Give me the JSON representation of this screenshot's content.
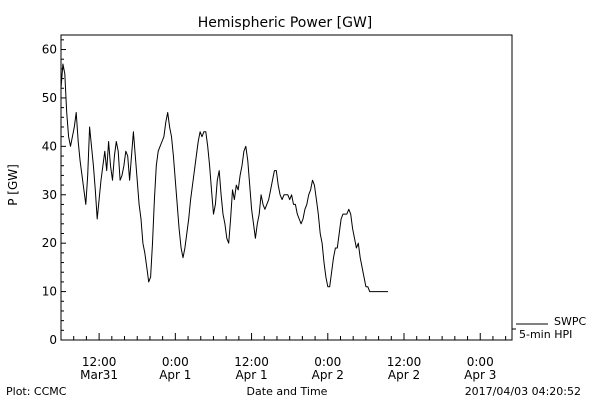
{
  "chart_data": {
    "type": "line",
    "title": "Hemispheric Power [GW]",
    "ylabel": "P [GW]",
    "xlabel": "Date and Time",
    "ylim": [
      0,
      63
    ],
    "yticks": [
      0,
      10,
      20,
      30,
      40,
      50,
      60
    ],
    "x_unit": "hours since 2017-03-31 06:00",
    "xlim": [
      0,
      71
    ],
    "xticks": [
      {
        "x": 6,
        "label": [
          "12:00",
          "Mar31"
        ]
      },
      {
        "x": 18,
        "label": [
          "0:00",
          "Apr 1"
        ]
      },
      {
        "x": 30,
        "label": [
          "12:00",
          "Apr 1"
        ]
      },
      {
        "x": 42,
        "label": [
          "0:00",
          "Apr 2"
        ]
      },
      {
        "x": 54,
        "label": [
          "12:00",
          "Apr 2"
        ]
      },
      {
        "x": 66,
        "label": [
          "0:00",
          "Apr 3"
        ]
      }
    ],
    "grid": false,
    "legend_position": "bottom-right outside",
    "series": [
      {
        "name": "SWPC",
        "points": [
          [
            0.0,
            52
          ],
          [
            0.3,
            57
          ],
          [
            0.6,
            55
          ],
          [
            0.9,
            47
          ],
          [
            1.2,
            42
          ],
          [
            1.5,
            40
          ],
          [
            1.8,
            42
          ],
          [
            2.1,
            44
          ],
          [
            2.4,
            47
          ],
          [
            2.7,
            41
          ],
          [
            3.0,
            37
          ],
          [
            3.3,
            34
          ],
          [
            3.6,
            31
          ],
          [
            3.9,
            28
          ],
          [
            4.2,
            34
          ],
          [
            4.5,
            44
          ],
          [
            4.8,
            40
          ],
          [
            5.1,
            36
          ],
          [
            5.4,
            31
          ],
          [
            5.7,
            25
          ],
          [
            6.0,
            29
          ],
          [
            6.3,
            33
          ],
          [
            6.6,
            36
          ],
          [
            6.9,
            39
          ],
          [
            7.2,
            35
          ],
          [
            7.5,
            41
          ],
          [
            7.8,
            36
          ],
          [
            8.1,
            33
          ],
          [
            8.4,
            38
          ],
          [
            8.7,
            41
          ],
          [
            9.0,
            39
          ],
          [
            9.3,
            33
          ],
          [
            9.6,
            34
          ],
          [
            9.9,
            36
          ],
          [
            10.2,
            39
          ],
          [
            10.5,
            38
          ],
          [
            10.8,
            33
          ],
          [
            11.1,
            38
          ],
          [
            11.4,
            43
          ],
          [
            11.7,
            38
          ],
          [
            12.0,
            33
          ],
          [
            12.3,
            28
          ],
          [
            12.6,
            25
          ],
          [
            12.9,
            20
          ],
          [
            13.2,
            18
          ],
          [
            13.5,
            15
          ],
          [
            13.8,
            12
          ],
          [
            14.1,
            13
          ],
          [
            14.4,
            20
          ],
          [
            14.7,
            29
          ],
          [
            15.0,
            36
          ],
          [
            15.3,
            39
          ],
          [
            15.6,
            40
          ],
          [
            15.9,
            41
          ],
          [
            16.2,
            42
          ],
          [
            16.5,
            45
          ],
          [
            16.8,
            47
          ],
          [
            17.1,
            44
          ],
          [
            17.4,
            42
          ],
          [
            17.7,
            38
          ],
          [
            18.0,
            33
          ],
          [
            18.3,
            28
          ],
          [
            18.6,
            23
          ],
          [
            18.9,
            19
          ],
          [
            19.2,
            17
          ],
          [
            19.5,
            19
          ],
          [
            19.8,
            22
          ],
          [
            20.1,
            25
          ],
          [
            20.4,
            29
          ],
          [
            20.7,
            32
          ],
          [
            21.0,
            35
          ],
          [
            21.3,
            38
          ],
          [
            21.6,
            41
          ],
          [
            21.9,
            43
          ],
          [
            22.2,
            42
          ],
          [
            22.5,
            43
          ],
          [
            22.8,
            43
          ],
          [
            23.1,
            40
          ],
          [
            23.4,
            36
          ],
          [
            23.7,
            31
          ],
          [
            24.0,
            26
          ],
          [
            24.3,
            28
          ],
          [
            24.6,
            33
          ],
          [
            24.9,
            35
          ],
          [
            25.2,
            30
          ],
          [
            25.5,
            26
          ],
          [
            25.8,
            24
          ],
          [
            26.1,
            21
          ],
          [
            26.4,
            20
          ],
          [
            26.7,
            25
          ],
          [
            27.0,
            31
          ],
          [
            27.3,
            29
          ],
          [
            27.6,
            32
          ],
          [
            27.9,
            31
          ],
          [
            28.2,
            34
          ],
          [
            28.5,
            36
          ],
          [
            28.8,
            39
          ],
          [
            29.1,
            40
          ],
          [
            29.4,
            37
          ],
          [
            29.7,
            32
          ],
          [
            30.0,
            27
          ],
          [
            30.3,
            24
          ],
          [
            30.6,
            21
          ],
          [
            30.9,
            24
          ],
          [
            31.2,
            26
          ],
          [
            31.5,
            30
          ],
          [
            31.8,
            28
          ],
          [
            32.1,
            27
          ],
          [
            32.4,
            28
          ],
          [
            32.7,
            29
          ],
          [
            33.0,
            31
          ],
          [
            33.3,
            33
          ],
          [
            33.6,
            35
          ],
          [
            33.9,
            35
          ],
          [
            34.2,
            32
          ],
          [
            34.5,
            30
          ],
          [
            34.8,
            29
          ],
          [
            35.1,
            30
          ],
          [
            35.4,
            30
          ],
          [
            35.7,
            30
          ],
          [
            36.0,
            29
          ],
          [
            36.3,
            30
          ],
          [
            36.6,
            28
          ],
          [
            36.9,
            28
          ],
          [
            37.2,
            26
          ],
          [
            37.5,
            25
          ],
          [
            37.8,
            24
          ],
          [
            38.1,
            25
          ],
          [
            38.4,
            27
          ],
          [
            38.7,
            28
          ],
          [
            39.0,
            30
          ],
          [
            39.3,
            31
          ],
          [
            39.6,
            33
          ],
          [
            39.9,
            32
          ],
          [
            40.2,
            29
          ],
          [
            40.5,
            26
          ],
          [
            40.8,
            22
          ],
          [
            41.1,
            20
          ],
          [
            41.4,
            16
          ],
          [
            41.7,
            13
          ],
          [
            42.0,
            11
          ],
          [
            42.3,
            11
          ],
          [
            42.6,
            14
          ],
          [
            42.9,
            17
          ],
          [
            43.2,
            19
          ],
          [
            43.5,
            19
          ],
          [
            43.8,
            22
          ],
          [
            44.1,
            25
          ],
          [
            44.4,
            26
          ],
          [
            44.7,
            26
          ],
          [
            45.0,
            26
          ],
          [
            45.3,
            27
          ],
          [
            45.6,
            26
          ],
          [
            45.9,
            23
          ],
          [
            46.2,
            21
          ],
          [
            46.5,
            19
          ],
          [
            46.8,
            20
          ],
          [
            47.1,
            17
          ],
          [
            47.4,
            15
          ],
          [
            47.7,
            13
          ],
          [
            48.0,
            11
          ],
          [
            48.3,
            11
          ],
          [
            48.6,
            10
          ],
          [
            51.5,
            10
          ]
        ]
      },
      {
        "name": "5-min HPI",
        "points": []
      }
    ],
    "footer": {
      "left": "Plot: CCMC",
      "center": "Date and Time",
      "right": "2017/04/03 04:20:52"
    },
    "legend": [
      "SWPC",
      "5-min HPI"
    ]
  }
}
